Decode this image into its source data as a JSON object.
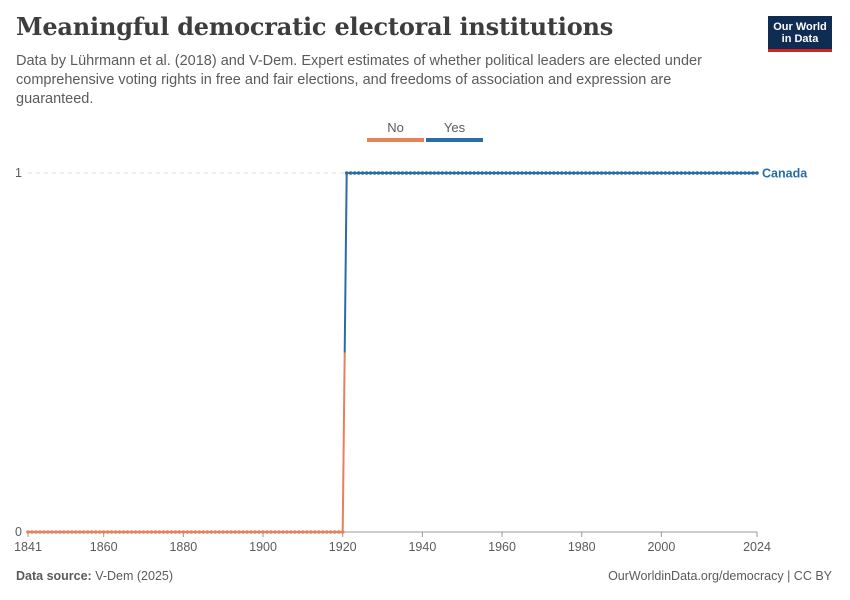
{
  "header": {
    "title": "Meaningful democratic electoral institutions",
    "subtitle": "Data by Lührmann et al. (2018) and V-Dem. Expert estimates of whether political leaders are elected under comprehensive voting rights in free and fair elections, and freedoms of association and expression are guaranteed.",
    "logo_line1": "Our World",
    "logo_line2": "in Data"
  },
  "footer": {
    "source_label": "Data source:",
    "source_value": "V-Dem (2025)",
    "link": "OurWorldinData.org/democracy | CC BY"
  },
  "colors": {
    "no": "#e8805a",
    "yes": "#2a6ca8",
    "label": "#2a6ca8"
  },
  "chart_data": {
    "type": "line",
    "x_start": 1841,
    "x_end": 2024,
    "xlim": [
      1841,
      2024
    ],
    "ylim": [
      0,
      1
    ],
    "x_ticks": [
      1841,
      1860,
      1880,
      1900,
      1920,
      1940,
      1960,
      1980,
      2000,
      2024
    ],
    "y_ticks": [
      0,
      1
    ],
    "legend": [
      {
        "label": "No",
        "color": "#e8805a"
      },
      {
        "label": "Yes",
        "color": "#2a6ca8"
      }
    ],
    "legend_position": "top-center",
    "series": [
      {
        "name": "Canada",
        "segments": [
          {
            "from": 1841,
            "to": 1920,
            "value": 0
          },
          {
            "from": 1921,
            "to": 2024,
            "value": 1
          }
        ]
      }
    ]
  }
}
